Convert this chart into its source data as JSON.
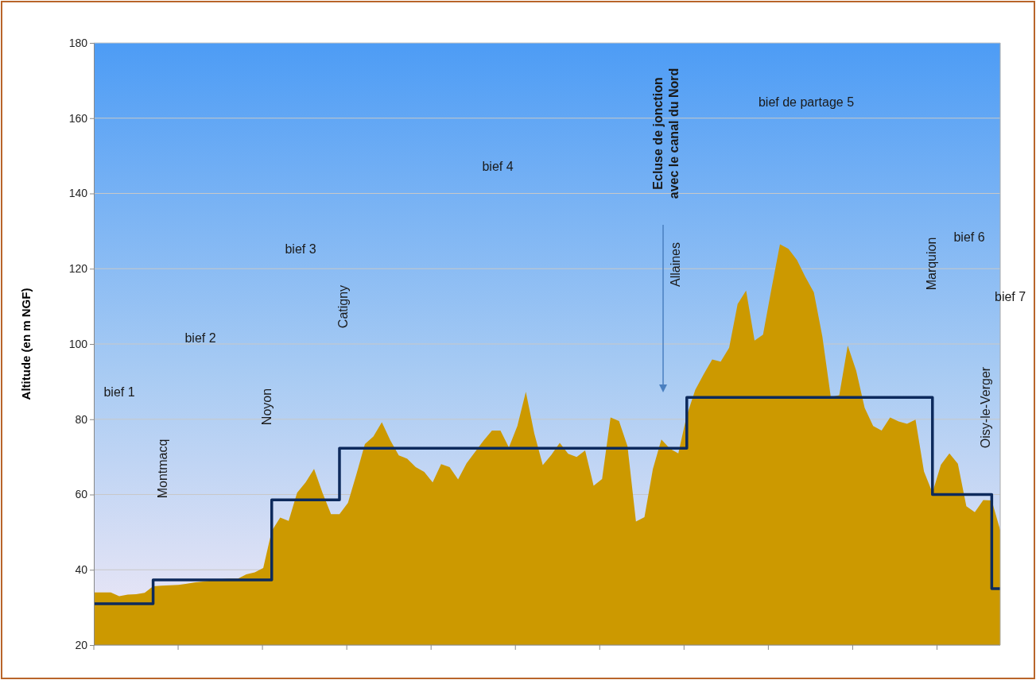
{
  "chart_data": {
    "type": "area",
    "ylabel": "Altitude (en m NGF)",
    "categories": [
      null,
      null,
      null,
      null,
      null,
      null,
      null,
      null,
      null,
      null,
      null,
      null,
      null,
      null,
      null,
      null,
      null,
      null,
      null,
      null,
      null,
      null,
      null,
      null,
      null,
      null,
      null,
      null,
      null,
      null,
      null,
      null,
      null,
      null,
      null,
      null,
      null,
      null,
      null,
      null,
      null,
      null,
      null,
      null,
      null,
      null,
      null,
      null,
      null,
      null,
      null,
      null,
      null,
      null,
      null,
      null,
      null,
      null,
      null,
      null,
      null,
      null,
      null,
      null,
      null,
      null,
      null,
      null,
      null,
      null,
      null,
      null,
      null,
      null,
      null,
      null,
      null,
      null,
      null,
      null,
      null,
      null,
      null,
      null,
      null,
      null,
      null,
      null,
      null,
      null,
      null,
      null,
      null,
      null,
      null,
      null,
      null,
      null,
      null,
      null,
      null,
      null,
      null,
      null,
      null,
      null,
      null,
      null
    ],
    "ylim": [
      20,
      180
    ],
    "yticks": [
      20,
      40,
      60,
      80,
      100,
      120,
      140,
      160,
      180
    ],
    "grid": "y",
    "series": [
      {
        "color": "#cc9900",
        "values": [
          34,
          34,
          34,
          33,
          33.4,
          33.5,
          33.9,
          35.6,
          35.8,
          35.9,
          36,
          36.3,
          36.7,
          36.9,
          37.2,
          37.5,
          37.6,
          37.6,
          38.8,
          39.3,
          40.5,
          50.3,
          53.9,
          53,
          60.5,
          63.2,
          66.8,
          60.4,
          54.8,
          54.8,
          57.8,
          65.4,
          73.4,
          75.4,
          79.2,
          74.4,
          70.4,
          69.5,
          67.3,
          66,
          63.2,
          68.1,
          67.3,
          64,
          68.3,
          71.3,
          74.3,
          77,
          77,
          72.5,
          78.2,
          87.3,
          76.2,
          67.8,
          70.5,
          73.7,
          70.8,
          70,
          71.7,
          62.3,
          64.1,
          80.5,
          79.5,
          72.8,
          52.8,
          54,
          66.8,
          74.6,
          72.2,
          70.9,
          81,
          87.8,
          92,
          95.9,
          95.3,
          99,
          110.6,
          114.2,
          100.9,
          102.5,
          114.7,
          126.5,
          125.3,
          122.3,
          117.8,
          113.7,
          102,
          85.9,
          86.4,
          99.6,
          92.9,
          83,
          78.2,
          77,
          80.5,
          79.4,
          78.8,
          79.9,
          66.1,
          60.5,
          67.9,
          70.9,
          68.2,
          56.9,
          55.3,
          58.5,
          58.4,
          50.5
        ]
      },
      {
        "type": "step",
        "color": "#0d2a5c",
        "values": [
          31,
          31,
          31,
          31,
          31,
          31,
          31,
          37.3,
          37.3,
          37.3,
          37.3,
          37.3,
          37.3,
          37.3,
          37.3,
          37.3,
          37.3,
          37.3,
          37.3,
          37.3,
          37.3,
          58.6,
          58.6,
          58.6,
          58.6,
          58.6,
          58.6,
          58.6,
          58.6,
          72.3,
          72.3,
          72.3,
          72.3,
          72.3,
          72.3,
          72.3,
          72.3,
          72.3,
          72.3,
          72.3,
          72.3,
          72.3,
          72.3,
          72.3,
          72.3,
          72.3,
          72.3,
          72.3,
          72.3,
          72.3,
          72.3,
          72.3,
          72.3,
          72.3,
          72.3,
          72.3,
          72.3,
          72.3,
          72.3,
          72.3,
          72.3,
          72.3,
          72.3,
          72.3,
          72.3,
          72.3,
          72.3,
          72.3,
          72.3,
          72.3,
          85.8,
          85.8,
          85.8,
          85.8,
          85.8,
          85.8,
          85.8,
          85.8,
          85.8,
          85.8,
          85.8,
          85.8,
          85.8,
          85.8,
          85.8,
          85.8,
          85.8,
          85.8,
          85.8,
          85.8,
          85.8,
          85.8,
          85.8,
          85.8,
          85.8,
          85.8,
          85.8,
          85.8,
          85.8,
          60,
          60,
          60,
          60,
          60,
          60,
          60,
          35,
          35
        ]
      }
    ],
    "annotations": [
      "bief 1",
      "bief 2",
      "bief 3",
      "bief 4",
      "bief de partage 5",
      "bief 6",
      "bief 7",
      "Montmacq",
      "Noyon",
      "Catigny",
      "Allaines",
      "Marquion",
      "Oisy-le-Verger",
      "Ecluse  de jonction\navec le canal du Nord"
    ]
  }
}
